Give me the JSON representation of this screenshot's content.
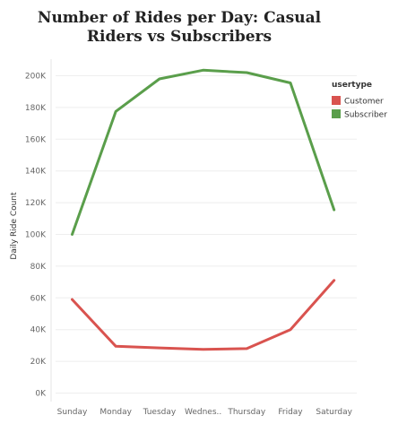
{
  "chart_data": {
    "type": "line",
    "title": "Number of Rides per Day: Casual Riders vs Subscribers",
    "xlabel": "",
    "ylabel": "Daily Ride Count",
    "categories": [
      "Sunday",
      "Monday",
      "Tuesday",
      "Wednes..",
      "Thursday",
      "Friday",
      "Saturday"
    ],
    "y_ticks": [
      0,
      20000,
      40000,
      60000,
      80000,
      100000,
      120000,
      140000,
      160000,
      180000,
      200000
    ],
    "y_tick_labels": [
      "0K",
      "20K",
      "40K",
      "60K",
      "80K",
      "100K",
      "120K",
      "140K",
      "160K",
      "180K",
      "200K"
    ],
    "ylim": [
      0,
      210000
    ],
    "grid": true,
    "legend": {
      "title": "usertype",
      "position": "right"
    },
    "series": [
      {
        "name": "Customer",
        "color": "#d9534f",
        "values": [
          59000,
          29500,
          28500,
          27500,
          28000,
          40000,
          71000
        ]
      },
      {
        "name": "Subscriber",
        "color": "#5a9e4b",
        "values": [
          100000,
          177500,
          198000,
          203500,
          202000,
          195500,
          115500
        ]
      }
    ]
  }
}
